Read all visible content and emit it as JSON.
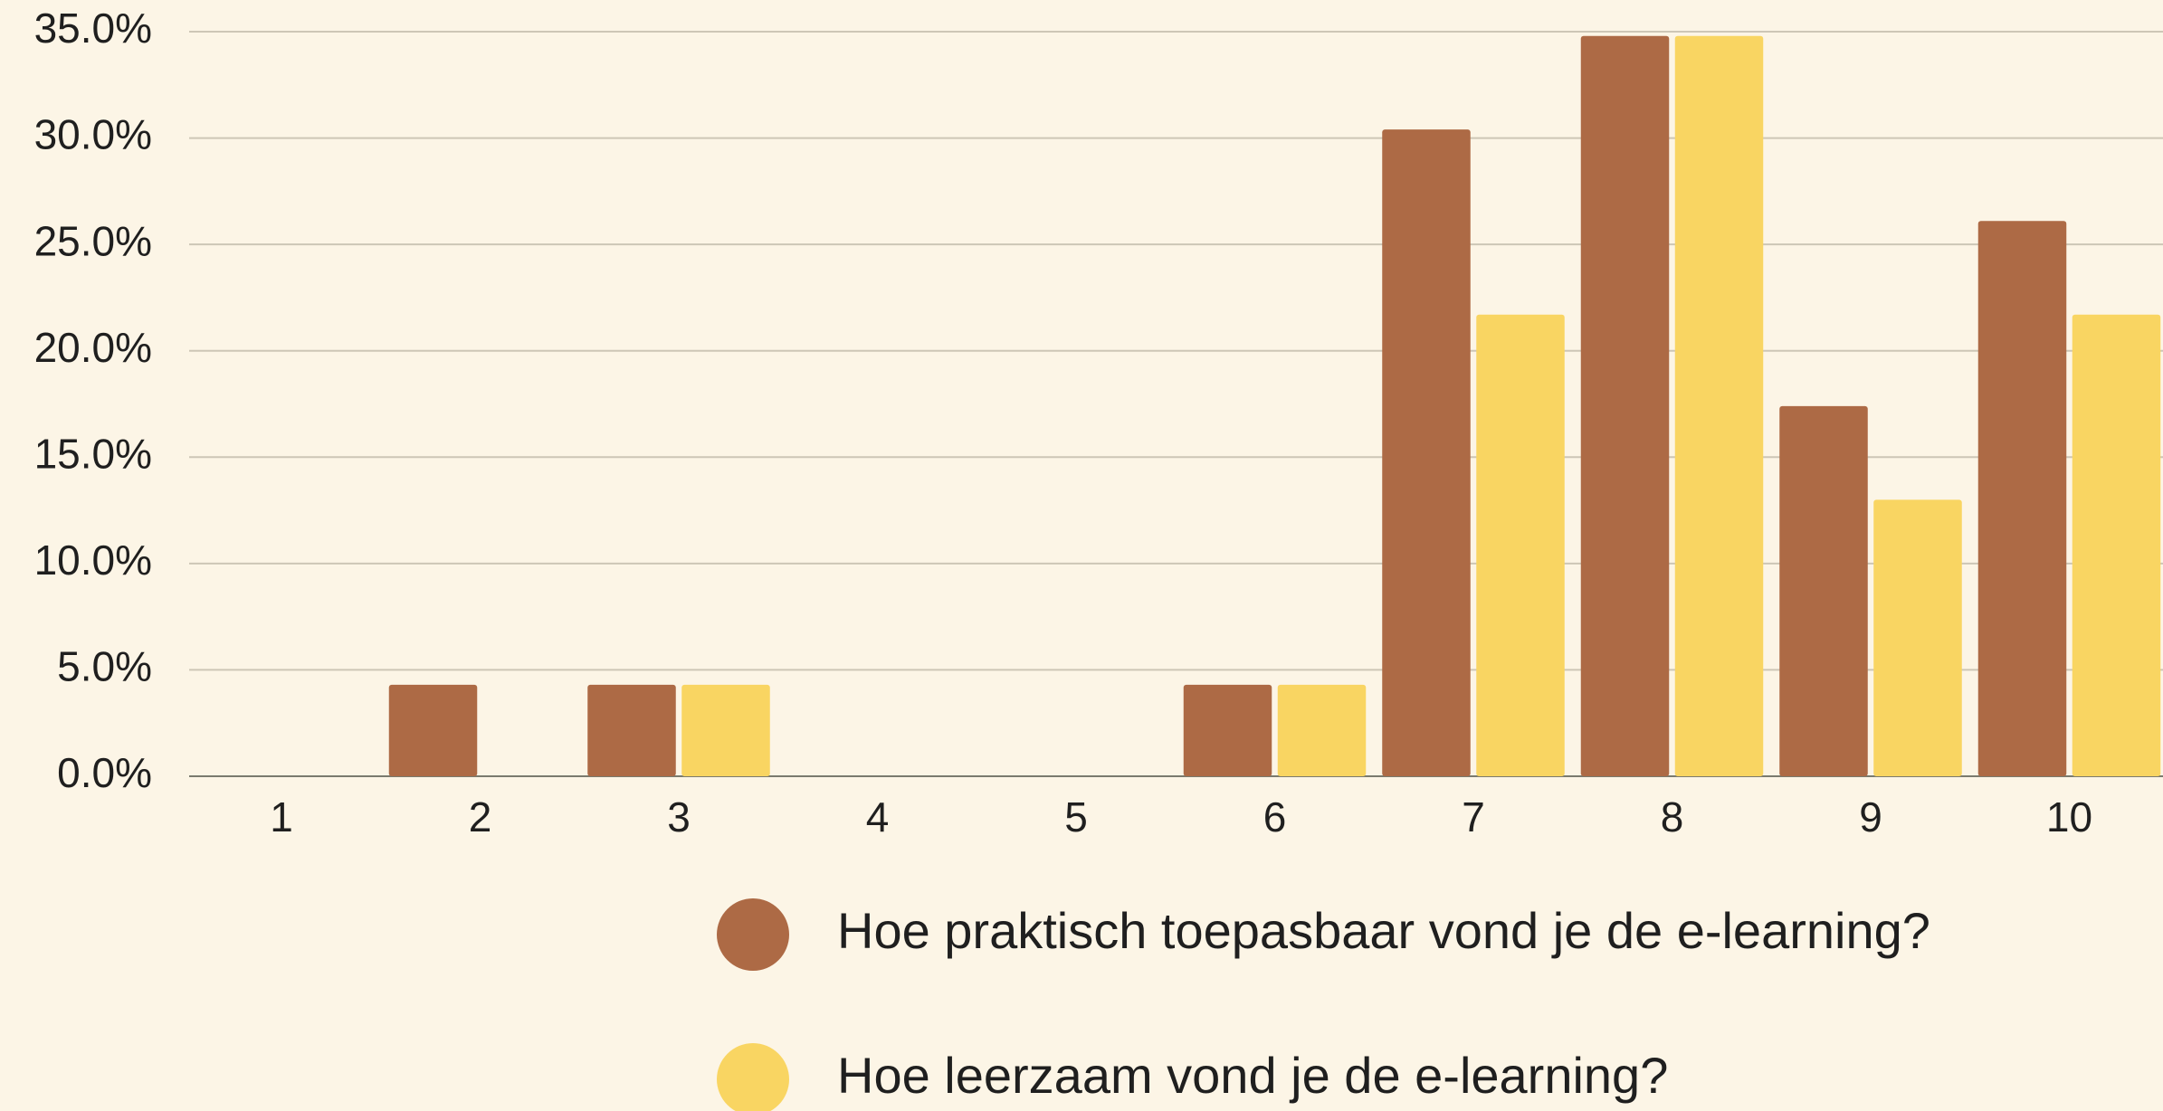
{
  "chart_data": {
    "type": "bar",
    "categories": [
      "1",
      "2",
      "3",
      "4",
      "5",
      "6",
      "7",
      "8",
      "9",
      "10"
    ],
    "series": [
      {
        "name": "Hoe praktisch toepasbaar vond je de e-learning?",
        "color": "#ad6a45",
        "values": [
          0,
          4.3,
          4.3,
          0,
          0,
          4.3,
          30.4,
          34.8,
          17.4,
          26.1
        ]
      },
      {
        "name": "Hoe leerzaam vond je de e-learning?",
        "color": "#f9d562",
        "values": [
          0,
          0,
          4.3,
          0,
          0,
          4.3,
          21.7,
          34.8,
          13.0,
          21.7
        ]
      }
    ],
    "ylim": [
      0,
      35
    ],
    "yticks": [
      {
        "value": 0,
        "label": "0.0%"
      },
      {
        "value": 5,
        "label": "5.0%"
      },
      {
        "value": 10,
        "label": "10.0%"
      },
      {
        "value": 15,
        "label": "15.0%"
      },
      {
        "value": 20,
        "label": "20.0%"
      },
      {
        "value": 25,
        "label": "25.0%"
      },
      {
        "value": 30,
        "label": "30.0%"
      },
      {
        "value": 35,
        "label": "35.0%"
      }
    ],
    "grid": true,
    "legend": "bottom"
  }
}
